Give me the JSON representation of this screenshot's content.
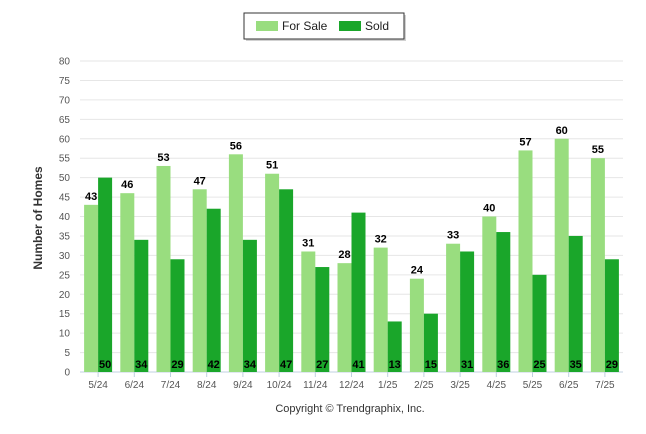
{
  "chart_data": {
    "type": "bar",
    "categories": [
      "5/24",
      "6/24",
      "7/24",
      "8/24",
      "9/24",
      "10/24",
      "11/24",
      "12/24",
      "1/25",
      "2/25",
      "3/25",
      "4/25",
      "5/25",
      "6/25",
      "7/25"
    ],
    "series": [
      {
        "name": "For Sale",
        "color": "#99dd7f",
        "label_position": "top",
        "values": [
          43,
          46,
          53,
          47,
          56,
          51,
          31,
          28,
          32,
          24,
          33,
          40,
          57,
          60,
          55
        ]
      },
      {
        "name": "Sold",
        "color": "#1aa62a",
        "label_position": "bottom",
        "values": [
          50,
          34,
          29,
          42,
          34,
          47,
          27,
          41,
          13,
          15,
          31,
          36,
          25,
          35,
          29
        ]
      }
    ],
    "ylabel": "Number of Homes",
    "ylim": [
      0,
      80
    ],
    "yticks": [
      0,
      5,
      10,
      15,
      20,
      25,
      30,
      35,
      40,
      45,
      50,
      55,
      60,
      65,
      70,
      75,
      80
    ],
    "grid": true,
    "legend": "top-center"
  },
  "footer": {
    "credit": "Copyright © Trendgraphix, Inc."
  }
}
